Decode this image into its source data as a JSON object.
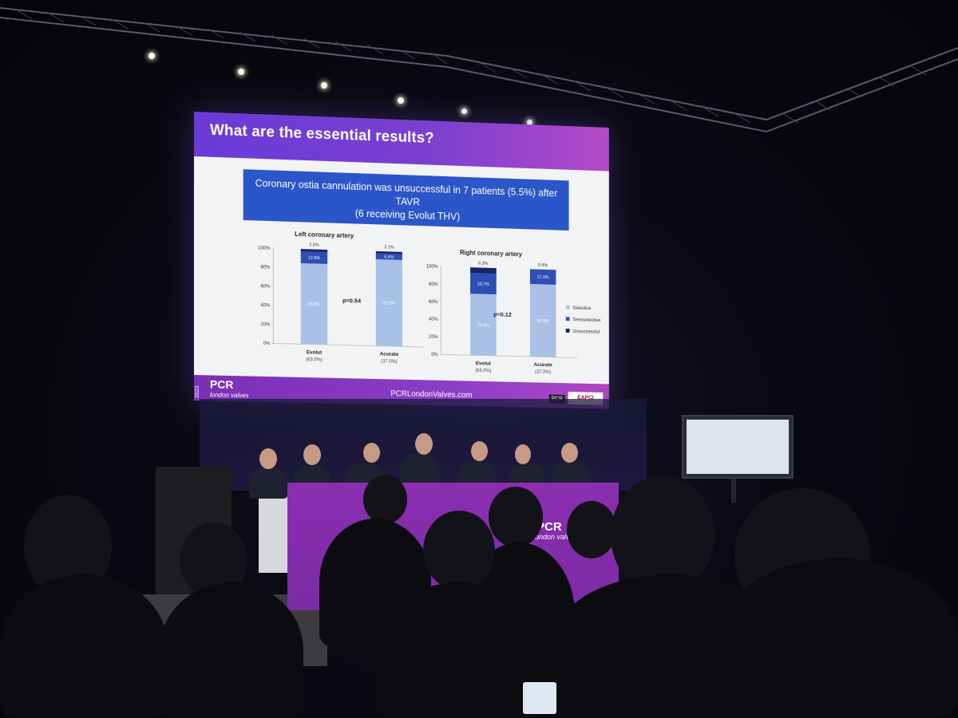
{
  "slide": {
    "title": "What are the essential results?",
    "banner_line1": "Coronary ostia cannulation was unsuccessful in 7 patients (5.5%) after TAVR",
    "banner_line2": "(6 receiving Evolut THV)",
    "footer_year": "2023",
    "footer_logo": "PCR",
    "footer_sub": "london valves",
    "footer_url": "PCRLondonValves.com",
    "footer_pcr_badge": "PCR",
    "footer_eapci_badge": "EAPCI"
  },
  "stage": {
    "desk_brand": "PCR",
    "desk_sub": "london valves"
  },
  "colors": {
    "selective": "#a9c1e6",
    "semiselective": "#2d4fb3",
    "unsuccessful": "#1a2466",
    "slide_header": "#6a3bd8",
    "banner": "#2b56c9"
  },
  "chart_data": [
    {
      "type": "bar",
      "stacked": true,
      "title": "Left coronary artery",
      "categories": [
        "Evolut",
        "Acurate"
      ],
      "category_sub": [
        "(63.0%)",
        "(37.0%)"
      ],
      "series": [
        {
          "name": "Selective",
          "values": [
            85.0,
            91.5
          ]
        },
        {
          "name": "Semiselective",
          "values": [
            12.5,
            6.4
          ]
        },
        {
          "name": "Unsuccessful",
          "values": [
            2.5,
            2.1
          ]
        }
      ],
      "labels": [
        [
          "85.0%",
          "12.5%",
          "2.5%"
        ],
        [
          "91.5%",
          "6.4%",
          "2.1%"
        ]
      ],
      "annotation": "p=0.54",
      "yticks": [
        "0%",
        "20%",
        "40%",
        "60%",
        "80%",
        "100%"
      ],
      "ylim": [
        0,
        100
      ]
    },
    {
      "type": "bar",
      "stacked": true,
      "title": "Right coronary artery",
      "categories": [
        "Evolut",
        "Acurate"
      ],
      "category_sub": [
        "(63.0%)",
        "(37.0%)"
      ],
      "series": [
        {
          "name": "Selective",
          "values": [
            70.0,
            83.0
          ]
        },
        {
          "name": "Semiselective",
          "values": [
            23.7,
            17.0
          ]
        },
        {
          "name": "Unsuccessful",
          "values": [
            6.3,
            0.0
          ]
        }
      ],
      "labels": [
        [
          "70.0%",
          "23.7%",
          "6.3%"
        ],
        [
          "83.0%",
          "17.0%",
          "0.0%"
        ]
      ],
      "annotation": "p=0.12",
      "yticks": [
        "0%",
        "20%",
        "40%",
        "60%",
        "80%",
        "100%"
      ],
      "ylim": [
        0,
        100
      ],
      "legend": [
        "Selective",
        "Semiselective",
        "Unsuccessful"
      ],
      "legend_position": "right"
    }
  ]
}
